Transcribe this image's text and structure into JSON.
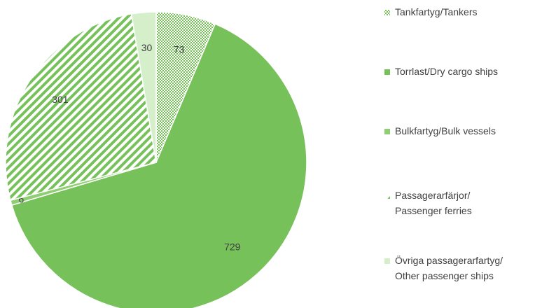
{
  "chart_data": {
    "type": "pie",
    "categories": [
      "Tankfartyg/Tankers",
      "Torrlast/Dry cargo ships",
      "Bulkfartyg/Bulk vessels",
      "Passagerarfärjor/\nPassenger ferries",
      "Övriga passagerarfartyg/\nOther passenger ships"
    ],
    "values": [
      73,
      729,
      6,
      301,
      30
    ],
    "colors": [
      "#77c15a",
      "#77c15a",
      "#8fce72",
      "#77c15a",
      "#d6efcb"
    ],
    "patterns": [
      "crosshatch",
      "solid",
      "solid",
      "stripes",
      "solid"
    ],
    "legend": "right"
  }
}
